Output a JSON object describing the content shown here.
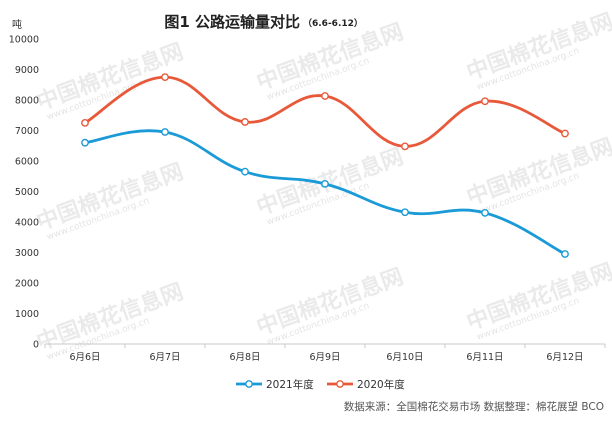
{
  "title": "图1 公路运输量对比",
  "subtitle": "（6.6-6.12）",
  "watermark": {
    "text": "中国棉花信息网",
    "url": "www.cottonchina.org.cn"
  },
  "source": "数据来源：全国棉花交易市场   数据整理：棉花展望 BCO",
  "chart_data": {
    "type": "line",
    "title": "图1 公路运输量对比",
    "ylabel": "吨",
    "xlabel": "",
    "categories": [
      "6月6日",
      "6月7日",
      "6月8日",
      "6月9日",
      "6月10日",
      "6月11日",
      "6月12日"
    ],
    "yticks": [
      "0",
      "1000",
      "2000",
      "3000",
      "4000",
      "5000",
      "6000",
      "7000",
      "8000",
      "9000",
      "10000"
    ],
    "ylim": [
      0,
      10000
    ],
    "grid": false,
    "smooth": true,
    "legend_position": "bottom",
    "series": [
      {
        "name": "2021年度",
        "color": "#1a9ad6",
        "values": [
          6600,
          6950,
          5650,
          5250,
          4320,
          4300,
          2950
        ]
      },
      {
        "name": "2020年度",
        "color": "#e8593a",
        "values": [
          7250,
          8750,
          7280,
          8130,
          6480,
          7960,
          6900
        ]
      }
    ]
  }
}
